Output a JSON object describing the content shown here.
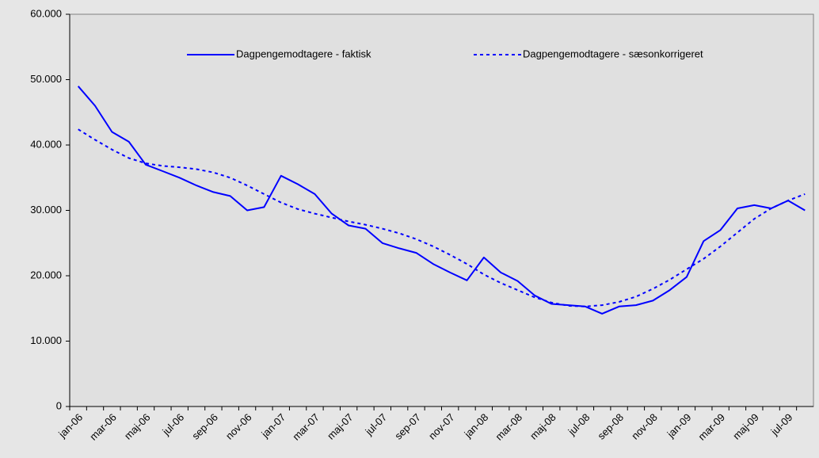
{
  "chart_data": {
    "type": "line",
    "categories": [
      "jan-06",
      null,
      "mar-06",
      null,
      "maj-06",
      null,
      "jul-06",
      null,
      "sep-06",
      null,
      "nov-06",
      null,
      "jan-07",
      null,
      "mar-07",
      null,
      "maj-07",
      null,
      "jul-07",
      null,
      "sep-07",
      null,
      "nov-07",
      null,
      "jan-08",
      null,
      "mar-08",
      null,
      "maj-08",
      null,
      "jul-08",
      null,
      "sep-08",
      null,
      "nov-08",
      null,
      "jan-09",
      null,
      "mar-09",
      null,
      "maj-09",
      null,
      "jul-09",
      null
    ],
    "series": [
      {
        "name": "Dagpengemodtagere - faktisk",
        "color": "#0000ff",
        "dash": false,
        "values": [
          49000,
          46000,
          42000,
          40500,
          37000,
          36000,
          35000,
          33800,
          32800,
          32200,
          30000,
          30500,
          35300,
          34000,
          32500,
          29500,
          27700,
          27200,
          25000,
          24200,
          23500,
          21800,
          20500,
          19300,
          22800,
          20500,
          19200,
          17000,
          15700,
          15500,
          15300,
          14200,
          15300,
          15500,
          16200,
          17800,
          19800,
          25300,
          27000,
          30300,
          30800,
          30300,
          31500,
          30000
        ]
      },
      {
        "name": "Dagpengemodtagere - sæsonkorrigeret",
        "color": "#0000ff",
        "dash": true,
        "values": [
          42400,
          40800,
          39300,
          38000,
          37200,
          36800,
          36600,
          36300,
          35800,
          35000,
          33800,
          32500,
          31200,
          30200,
          29500,
          28900,
          28300,
          27800,
          27200,
          26500,
          25600,
          24500,
          23200,
          21800,
          20200,
          18900,
          17800,
          16700,
          15900,
          15400,
          15300,
          15500,
          16000,
          16800,
          18000,
          19400,
          21000,
          22600,
          24500,
          26600,
          28700,
          30300,
          31500,
          32500
        ]
      }
    ],
    "ylim": [
      0,
      60000
    ],
    "yticks": [
      0,
      {
        "value": 10000,
        "label": "10.000"
      },
      {
        "value": 20000,
        "label": "20.000"
      },
      {
        "value": 30000,
        "label": "30.000"
      },
      {
        "value": 40000,
        "label": "40.000"
      },
      {
        "value": 50000,
        "label": "50.000"
      },
      {
        "value": 60000,
        "label": "60.000"
      }
    ],
    "grid": false,
    "legend": "top"
  }
}
